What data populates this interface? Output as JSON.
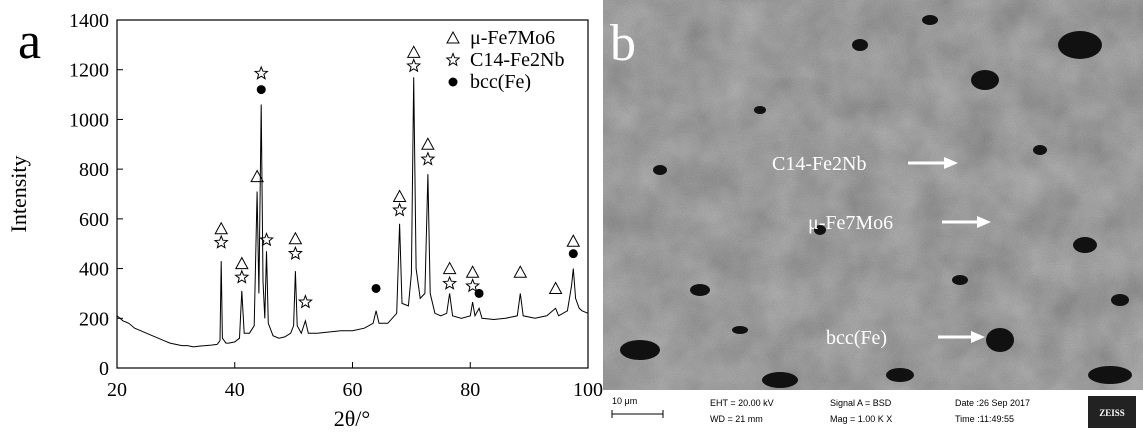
{
  "chart_data": {
    "type": "line",
    "panel_label": "a",
    "x_label": "2θ/°",
    "y_label": "Intensity",
    "color": "#000000",
    "x": [
      20,
      21,
      22,
      23,
      24,
      25,
      26,
      27,
      28,
      29,
      30,
      31,
      32,
      33,
      34,
      35,
      36,
      37,
      37.5,
      37.7,
      37.9,
      38.5,
      39,
      40,
      40.8,
      41.2,
      41.6,
      42.5,
      43.3,
      43.8,
      44.1,
      44.5,
      44.8,
      45.1,
      45.4,
      45.7,
      46.5,
      47.5,
      48.5,
      49.5,
      50,
      50.3,
      50.6,
      51.3,
      52,
      52.5,
      54,
      56,
      58,
      60,
      62,
      63.5,
      64,
      64.5,
      66,
      67.5,
      68,
      68.4,
      69.5,
      70,
      70.4,
      70.8,
      71.5,
      72.3,
      72.8,
      73.2,
      74,
      75,
      76,
      76.5,
      77,
      78.5,
      80,
      80.4,
      80.8,
      81.5,
      82,
      84,
      86,
      88,
      88.5,
      89,
      91,
      93,
      94.5,
      95,
      96.5,
      97.2,
      97.5,
      97.9,
      98.5,
      99,
      100
    ],
    "values": [
      210,
      190,
      180,
      160,
      150,
      140,
      130,
      120,
      110,
      100,
      95,
      90,
      90,
      85,
      88,
      90,
      92,
      95,
      110,
      430,
      120,
      100,
      100,
      105,
      120,
      310,
      140,
      140,
      170,
      710,
      300,
      1060,
      350,
      200,
      470,
      180,
      130,
      120,
      125,
      140,
      170,
      390,
      170,
      140,
      190,
      140,
      140,
      145,
      150,
      150,
      160,
      180,
      230,
      180,
      180,
      220,
      580,
      260,
      250,
      380,
      1170,
      400,
      280,
      300,
      780,
      300,
      220,
      210,
      220,
      300,
      210,
      200,
      210,
      265,
      210,
      240,
      200,
      195,
      200,
      210,
      300,
      210,
      200,
      210,
      240,
      210,
      230,
      330,
      400,
      280,
      240,
      230,
      220
    ],
    "xlim": [
      20,
      100
    ],
    "ylim": [
      0,
      1400
    ],
    "xticks": [
      20,
      40,
      60,
      80,
      100
    ],
    "yticks": [
      0,
      200,
      400,
      600,
      800,
      1000,
      1200,
      1400
    ],
    "marker_series": [
      {
        "name": "μ-Fe7Mo6",
        "marker": "triangle",
        "x": [
          37.7,
          41.2,
          43.8,
          50.3,
          68,
          70.4,
          72.8,
          76.5,
          80.4,
          88.5,
          94.5,
          97.5
        ],
        "values": [
          560,
          420,
          770,
          520,
          690,
          1270,
          900,
          400,
          385,
          385,
          320,
          510
        ]
      },
      {
        "name": "C14-Fe2Nb",
        "marker": "star",
        "x": [
          37.7,
          41.2,
          44.5,
          45.4,
          50.3,
          52,
          68,
          70.4,
          72.8,
          76.5,
          80.4
        ],
        "values": [
          505,
          365,
          1185,
          515,
          460,
          265,
          635,
          1215,
          840,
          340,
          330
        ]
      },
      {
        "name": "bcc(Fe)",
        "marker": "circle",
        "x": [
          44.5,
          64,
          81.5,
          97.5
        ],
        "values": [
          1120,
          320,
          300,
          460
        ]
      }
    ]
  },
  "sem_image": {
    "panel_label": "b",
    "phase_labels": [
      "C14-Fe2Nb",
      "μ-Fe7Mo6",
      "bcc(Fe)"
    ],
    "info_bar": {
      "scale": "10 μm",
      "eht": "EHT = 20.00 kV",
      "wd": "WD =  21 mm",
      "signal": "Signal A = BSD",
      "mag": "Mag =   1.00 K X",
      "date": "Date :26 Sep 2017",
      "time": "Time :11:49:55",
      "brand": "ZEISS"
    }
  }
}
